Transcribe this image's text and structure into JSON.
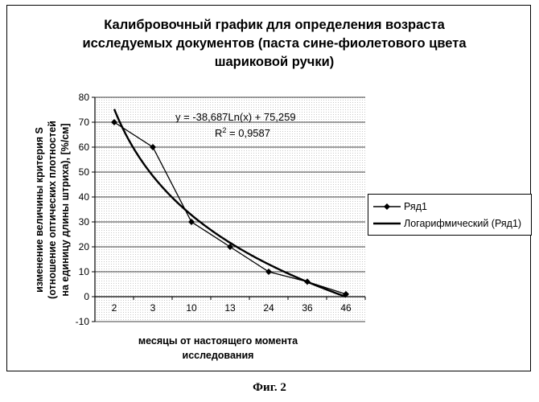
{
  "chart_data": {
    "type": "line",
    "title_lines": [
      "Калибровочный график для определения возраста",
      "исследуемых документов (паста сине-фиолетового цвета",
      "шариковой ручки)"
    ],
    "categories": [
      "2",
      "3",
      "10",
      "13",
      "24",
      "36",
      "46"
    ],
    "series": [
      {
        "name": "Ряд1",
        "values": [
          70,
          60,
          30,
          20,
          10,
          6,
          1
        ],
        "color": "#000000",
        "marker": "diamond"
      }
    ],
    "trendline": {
      "name": "Логарифмический (Ряд1)",
      "kind": "logarithmic",
      "a": -38.687,
      "b": 75.259,
      "equation": "y = -38,687Ln(x) + 75,259",
      "r2_prefix": "R",
      "r2_sup": "2",
      "r2_value": " = 0,9587"
    },
    "ylim": [
      -10,
      80
    ],
    "yticks": [
      -10,
      0,
      10,
      20,
      30,
      40,
      50,
      60,
      70,
      80
    ],
    "ylabel_lines": [
      "изменение величины критерия S",
      "(отношение оптических плотностей",
      "на единицу длины штриха), [%/см]"
    ],
    "xlabel_lines": [
      "месяцы от настоящего момента",
      "исследования"
    ],
    "grid": true,
    "legend_position": "right"
  },
  "caption": "Фиг. 2"
}
